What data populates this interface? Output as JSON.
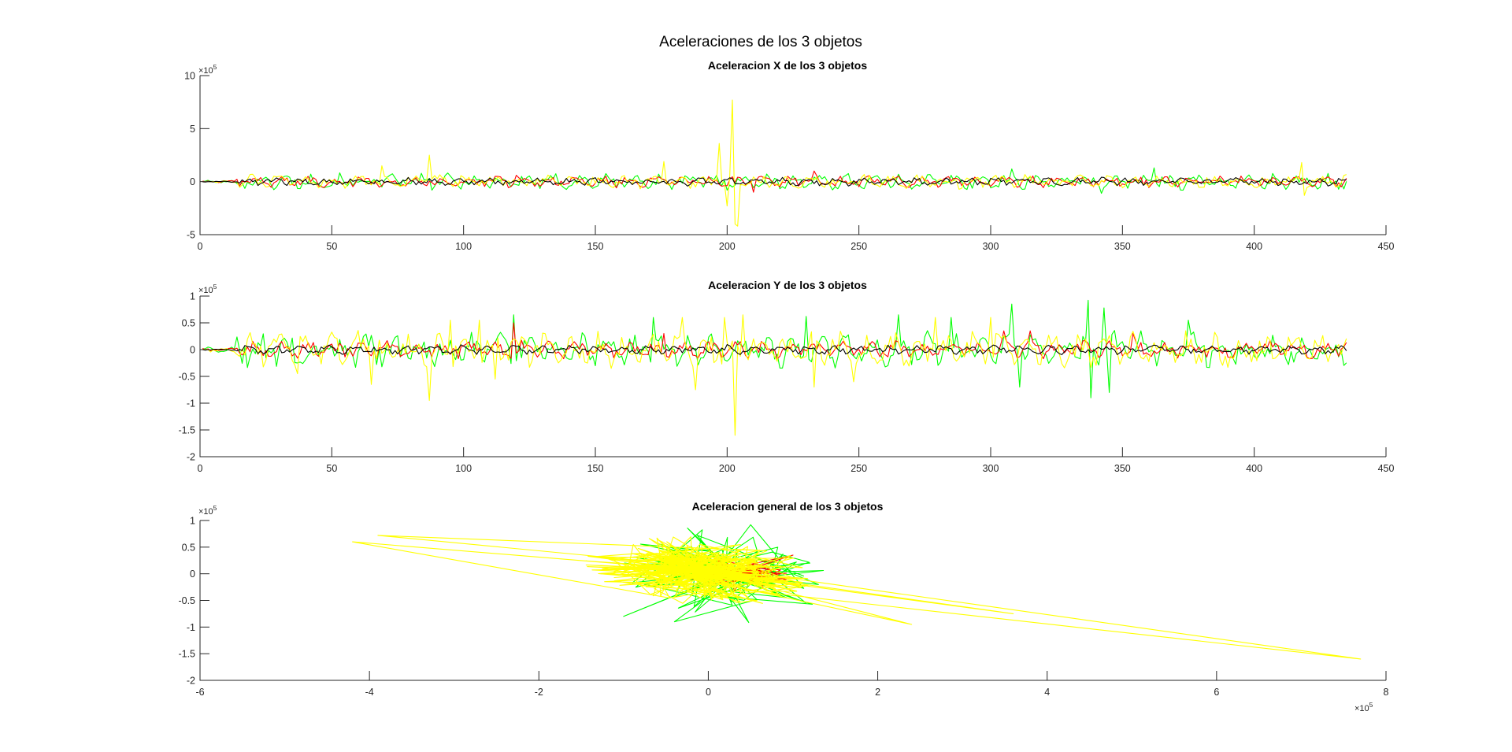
{
  "figure": {
    "title": "Aceleraciones de los 3 objetos"
  },
  "chart_data": [
    {
      "type": "line",
      "title": "Aceleracion X de los 3 objetos",
      "xlabel": "",
      "ylabel": "",
      "xlim": [
        0,
        450
      ],
      "ylim": [
        -5,
        10
      ],
      "y_multiplier": "×10^5",
      "x_ticks": [
        "0",
        "50",
        "100",
        "150",
        "200",
        "250",
        "300",
        "350",
        "400",
        "450"
      ],
      "y_ticks": [
        "-5",
        "0",
        "5",
        "10"
      ],
      "y_exponent_base": "×10",
      "y_exponent_power": "5",
      "grid": false,
      "n_points": 435,
      "series": [
        {
          "color": "#00ff00",
          "typical_amplitude": 0.7,
          "peaks": [
            {
              "x": 308,
              "y": 1.2
            },
            {
              "x": 342,
              "y": -1.1
            },
            {
              "x": 362,
              "y": 1.3
            }
          ]
        },
        {
          "color": "#ff0000",
          "typical_amplitude": 0.5,
          "peaks": [
            {
              "x": 120,
              "y": 0.6
            },
            {
              "x": 210,
              "y": -1.0
            },
            {
              "x": 233,
              "y": 1.0
            }
          ]
        },
        {
          "color": "#ffff00",
          "typical_amplitude": 0.6,
          "peaks": [
            {
              "x": 69,
              "y": 1.5
            },
            {
              "x": 87,
              "y": 2.5
            },
            {
              "x": 176,
              "y": 1.9
            },
            {
              "x": 197,
              "y": 3.6
            },
            {
              "x": 200,
              "y": -2.3
            },
            {
              "x": 202,
              "y": 7.7
            },
            {
              "x": 203,
              "y": -4.0
            },
            {
              "x": 204,
              "y": -4.2
            },
            {
              "x": 418,
              "y": 1.8
            },
            {
              "x": 419,
              "y": -1.3
            }
          ]
        },
        {
          "color": "#000000",
          "typical_amplitude": 0.35,
          "peaks": []
        }
      ]
    },
    {
      "type": "line",
      "title": "Aceleracion Y de los 3 objetos",
      "xlabel": "",
      "ylabel": "",
      "xlim": [
        0,
        450
      ],
      "ylim": [
        -2,
        1
      ],
      "y_multiplier": "×10^5",
      "x_ticks": [
        "0",
        "50",
        "100",
        "150",
        "200",
        "250",
        "300",
        "350",
        "400",
        "450"
      ],
      "y_ticks": [
        "-2",
        "-1.5",
        "-1",
        "-0.5",
        "0",
        "0.5",
        "1"
      ],
      "y_exponent_base": "×10",
      "y_exponent_power": "5",
      "grid": false,
      "n_points": 435,
      "series": [
        {
          "color": "#00ff00",
          "typical_amplitude": 0.3,
          "peaks": [
            {
              "x": 119,
              "y": 0.65
            },
            {
              "x": 172,
              "y": 0.6
            },
            {
              "x": 230,
              "y": 0.62
            },
            {
              "x": 265,
              "y": 0.65
            },
            {
              "x": 285,
              "y": 0.6
            },
            {
              "x": 308,
              "y": 0.85
            },
            {
              "x": 311,
              "y": -0.7
            },
            {
              "x": 337,
              "y": 0.92
            },
            {
              "x": 338,
              "y": -0.9
            },
            {
              "x": 343,
              "y": 0.78
            },
            {
              "x": 345,
              "y": -0.8
            },
            {
              "x": 375,
              "y": 0.55
            }
          ]
        },
        {
          "color": "#ff0000",
          "typical_amplitude": 0.15,
          "peaks": [
            {
              "x": 119,
              "y": 0.5
            },
            {
              "x": 176,
              "y": 0.3
            },
            {
              "x": 305,
              "y": 0.35
            },
            {
              "x": 315,
              "y": 0.35
            },
            {
              "x": 354,
              "y": 0.3
            }
          ]
        },
        {
          "color": "#ffff00",
          "typical_amplitude": 0.3,
          "peaks": [
            {
              "x": 37,
              "y": -0.45
            },
            {
              "x": 65,
              "y": -0.65
            },
            {
              "x": 87,
              "y": -0.95
            },
            {
              "x": 95,
              "y": 0.55
            },
            {
              "x": 106,
              "y": 0.55
            },
            {
              "x": 112,
              "y": -0.55
            },
            {
              "x": 183,
              "y": 0.6
            },
            {
              "x": 188,
              "y": -0.75
            },
            {
              "x": 199,
              "y": 0.6
            },
            {
              "x": 203,
              "y": -1.6
            },
            {
              "x": 206,
              "y": 0.65
            },
            {
              "x": 233,
              "y": -0.7
            },
            {
              "x": 248,
              "y": -0.6
            },
            {
              "x": 279,
              "y": 0.6
            },
            {
              "x": 300,
              "y": 0.6
            }
          ]
        },
        {
          "color": "#000000",
          "typical_amplitude": 0.08,
          "peaks": []
        }
      ]
    },
    {
      "type": "line",
      "title": "Aceleracion general de los 3 objetos",
      "xlabel": "",
      "ylabel": "",
      "xlim": [
        -6,
        8
      ],
      "ylim": [
        -2,
        1
      ],
      "x_multiplier": "×10^5",
      "y_multiplier": "×10^5",
      "x_ticks": [
        "-6",
        "-4",
        "-2",
        "0",
        "2",
        "4",
        "6",
        "8"
      ],
      "y_ticks": [
        "-2",
        "-1.5",
        "-1",
        "-0.5",
        "0",
        "0.5",
        "1"
      ],
      "x_exponent_base": "×10",
      "x_exponent_power": "5",
      "y_exponent_base": "×10",
      "y_exponent_power": "5",
      "grid": false,
      "note_points": "trajectory plot of acceleration (x vs y); dense cluster around origin",
      "series": [
        {
          "color": "#00ff00",
          "cluster_x_range": [
            -1.1,
            1.3
          ],
          "cluster_y_range": [
            -0.9,
            0.92
          ],
          "extreme_points": [
            {
              "x": 0.5,
              "y": 0.92
            },
            {
              "x": -0.4,
              "y": -0.9
            },
            {
              "x": -1.0,
              "y": -0.8
            },
            {
              "x": 1.2,
              "y": 0.2
            }
          ]
        },
        {
          "color": "#ff0000",
          "cluster_x_range": [
            -0.5,
            1.0
          ],
          "cluster_y_range": [
            -0.3,
            0.4
          ],
          "extreme_points": [
            {
              "x": 1.0,
              "y": 0.35
            }
          ]
        },
        {
          "color": "#ffff00",
          "cluster_x_range": [
            -1.6,
            1.2
          ],
          "cluster_y_range": [
            -0.6,
            0.7
          ],
          "extreme_points": [
            {
              "x": -4.2,
              "y": 0.6
            },
            {
              "x": -3.9,
              "y": 0.72
            },
            {
              "x": 7.7,
              "y": -1.6
            },
            {
              "x": 2.4,
              "y": -0.95
            },
            {
              "x": 3.6,
              "y": -0.75
            }
          ]
        }
      ]
    }
  ]
}
